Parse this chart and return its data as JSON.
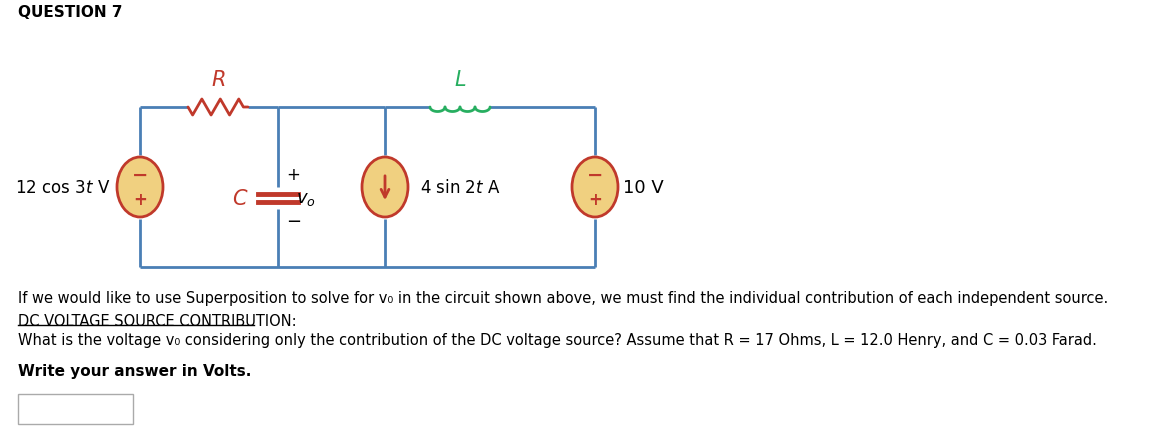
{
  "title": "QUESTION 7",
  "bg_color": "#ffffff",
  "circuit_color": "#4a7fb5",
  "resistor_color": "#c0392b",
  "inductor_color": "#27ae60",
  "capacitor_color": "#c0392b",
  "source_fill": "#f0d080",
  "source_border": "#c0392b",
  "label_R_color": "#c0392b",
  "label_L_color": "#27ae60",
  "label_C_color": "#c0392b",
  "line1": "If we would like to use Superposition to solve for v₀ in the circuit shown above, we must find the individual contribution of each independent source.",
  "line2": "DC VOLTAGE SOURCE CONTRIBUTION:",
  "line3": "What is the voltage v₀ considering only the contribution of the DC voltage source? Assume that R = 17 Ohms, L = 12.0 Henry, and C = 0.03 Farad.",
  "line4": "Write your answer in Volts.",
  "figsize": [
    11.55,
    4.39
  ],
  "dpi": 100
}
